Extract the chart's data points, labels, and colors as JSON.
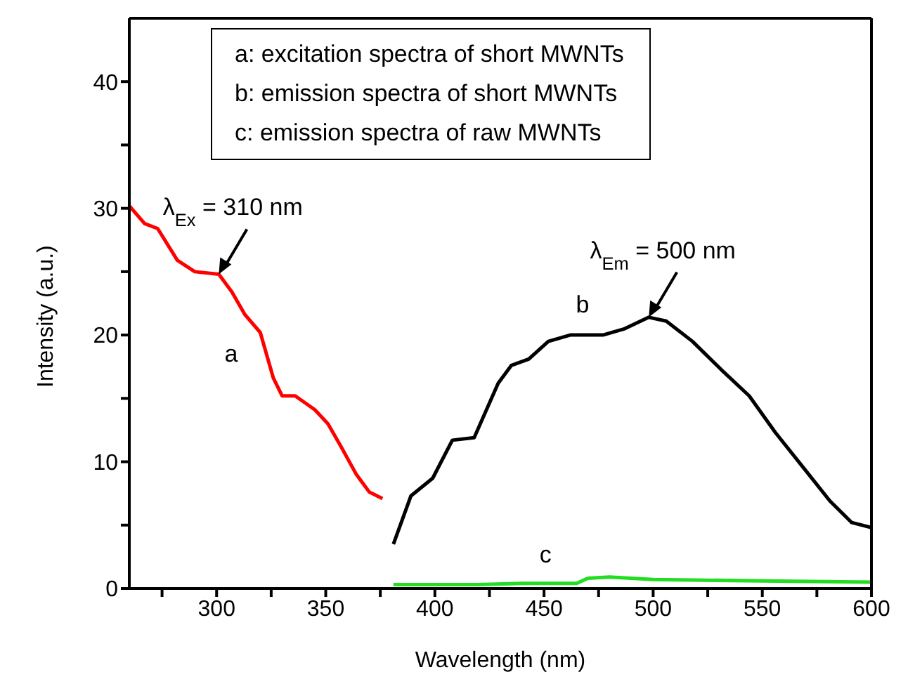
{
  "chart_data": {
    "type": "line",
    "xlabel": "Wavelength (nm)",
    "ylabel": "Intensity (a.u.)",
    "xlim": [
      260,
      600
    ],
    "xticks": [
      {
        "value": 275,
        "label": null
      },
      300,
      {
        "value": 325,
        "label": null
      },
      350,
      {
        "value": 375,
        "label": null
      },
      400,
      {
        "value": 425,
        "label": null
      },
      450,
      {
        "value": 475,
        "label": null
      },
      500,
      {
        "value": 525,
        "label": null
      },
      550,
      {
        "value": 575,
        "label": null
      },
      600
    ],
    "ylim": [
      0,
      45
    ],
    "yticks": [
      0,
      {
        "value": 5,
        "label": null
      },
      10,
      {
        "value": 15,
        "label": null
      },
      20,
      {
        "value": 25,
        "label": null
      },
      30,
      {
        "value": 35,
        "label": null
      },
      40
    ],
    "grid": false,
    "legend": false,
    "marker": "none",
    "line_style": "solid",
    "series": [
      {
        "name": "a",
        "color": "#ff0000",
        "x": [
          260,
          267,
          273,
          282,
          290,
          301,
          307,
          313,
          320,
          326,
          330,
          336,
          345,
          351,
          357,
          364,
          370,
          376
        ],
        "values": [
          30.2,
          28.8,
          28.4,
          25.9,
          25.0,
          24.8,
          23.4,
          21.6,
          20.2,
          16.6,
          15.2,
          15.2,
          14.1,
          13.0,
          11.2,
          9.0,
          7.6,
          7.1
        ]
      },
      {
        "name": "b",
        "color": "#000000",
        "x": [
          381,
          389,
          399,
          408,
          418,
          429,
          435,
          443,
          452,
          462,
          477,
          487,
          498,
          506,
          518,
          531,
          544,
          556,
          569,
          581,
          591,
          600
        ],
        "values": [
          3.5,
          7.3,
          8.7,
          11.7,
          11.9,
          16.2,
          17.6,
          18.1,
          19.5,
          20.0,
          20.0,
          20.5,
          21.4,
          21.1,
          19.5,
          17.3,
          15.2,
          12.3,
          9.5,
          6.9,
          5.2,
          4.8
        ]
      },
      {
        "name": "c",
        "color": "#22dd22",
        "x": [
          381,
          420,
          440,
          465,
          470,
          480,
          500,
          550,
          600
        ],
        "values": [
          0.3,
          0.3,
          0.4,
          0.4,
          0.8,
          0.9,
          0.7,
          0.6,
          0.5
        ]
      }
    ],
    "annotations": [
      "a: excitation spectra of short MWNTs",
      "b: emission spectra of short MWNTs",
      "c: emission spectra of raw MWNTs",
      {
        "text": "λ$_{Ex}$ = 310 nm",
        "x": 301,
        "y": 24.8
      },
      {
        "text": "λ$_{Em}$ = 500 nm",
        "x": 498,
        "y": 21.4
      }
    ]
  }
}
